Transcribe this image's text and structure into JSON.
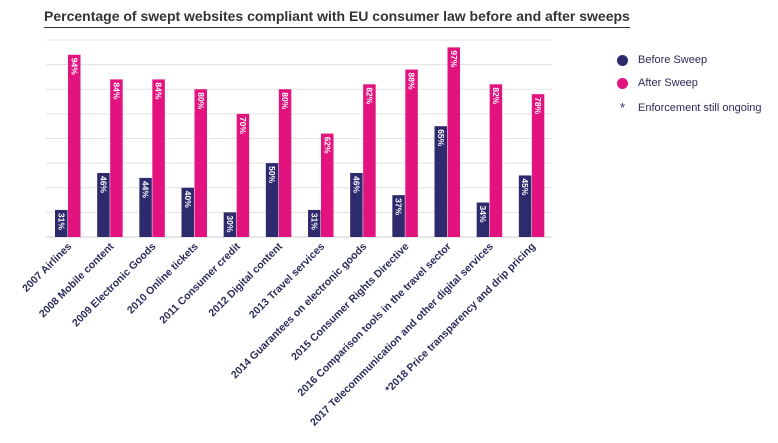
{
  "chart_data": {
    "type": "bar",
    "title": "Percentage of swept websites compliant with EU consumer law before and after sweeps",
    "categories": [
      "2007 Airlines",
      "2008 Mobile content",
      "2009 Electronic Goods",
      "2010 Online tickets",
      "2011 Consumer credit",
      "2012 Digital content",
      "2013 Travel services",
      "2014 Guarantees on electronic goods",
      "2015 Consumer Rights Directive",
      "2016 Comparison tools in the travel sector",
      "2017 Telecommunication and other digital services",
      "*2018 Price transparency and drip pricing"
    ],
    "series": [
      {
        "name": "Before Sweep",
        "color": "#2e2a6e",
        "values": [
          31,
          46,
          44,
          40,
          30,
          50,
          31,
          46,
          37,
          65,
          34,
          45
        ],
        "labels": [
          "31%",
          "46%",
          "44%",
          "40%",
          "30%",
          "50%",
          "31%",
          "46%",
          "37%",
          "65%",
          "34%",
          "45%"
        ]
      },
      {
        "name": "After Sweep",
        "color": "#e2137f",
        "values": [
          94,
          84,
          84,
          80,
          70,
          80,
          62,
          82,
          88,
          97,
          82,
          78
        ],
        "labels": [
          "94%",
          "84%",
          "84%",
          "80%",
          "70%",
          "80%",
          "62%",
          "82%",
          "88%",
          "97%",
          "82%",
          "78%"
        ]
      }
    ],
    "ylim": [
      20,
      100
    ],
    "grid": true,
    "legend_position": "right",
    "legend_note": "Enforcement still ongoing",
    "legend_note_symbol": "*"
  }
}
